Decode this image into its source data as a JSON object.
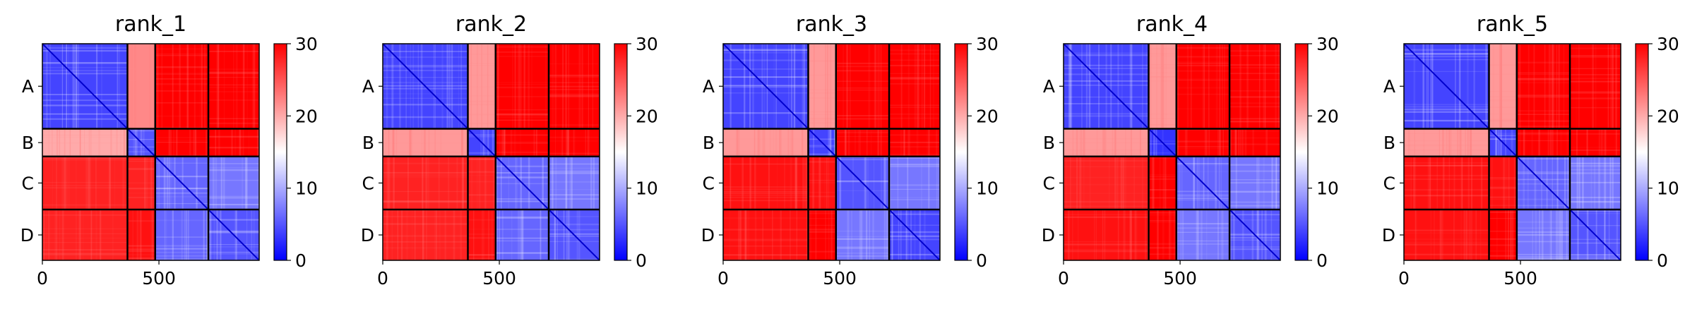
{
  "chart_data": [
    {
      "type": "heatmap",
      "title": "rank_1",
      "chain_labels": [
        "A",
        "B",
        "C",
        "D"
      ],
      "chain_boundaries": [
        0,
        365,
        484,
        712,
        930
      ],
      "x_ticks": [
        {
          "value": 0,
          "label": "0"
        },
        {
          "value": 500,
          "label": "500"
        }
      ],
      "colorbar": {
        "min": 0,
        "max": 30,
        "ticks": [
          {
            "value": 0,
            "label": "0"
          },
          {
            "value": 10,
            "label": "10"
          },
          {
            "value": 20,
            "label": "20"
          },
          {
            "value": 30,
            "label": "30"
          }
        ],
        "colormap": "bwr"
      },
      "blocks": [
        [
          4,
          22,
          30,
          30
        ],
        [
          20,
          5,
          30,
          30
        ],
        [
          28,
          28,
          6,
          7
        ],
        [
          28,
          29,
          6,
          5
        ]
      ]
    },
    {
      "type": "heatmap",
      "title": "rank_2",
      "chain_labels": [
        "A",
        "B",
        "C",
        "D"
      ],
      "chain_boundaries": [
        0,
        365,
        484,
        712,
        930
      ],
      "x_ticks": [
        {
          "value": 0,
          "label": "0"
        },
        {
          "value": 500,
          "label": "500"
        }
      ],
      "colorbar": {
        "min": 0,
        "max": 30,
        "ticks": [
          {
            "value": 0,
            "label": "0"
          },
          {
            "value": 10,
            "label": "10"
          },
          {
            "value": 20,
            "label": "20"
          },
          {
            "value": 30,
            "label": "30"
          }
        ],
        "colormap": "bwr"
      },
      "blocks": [
        [
          4,
          21,
          30,
          30
        ],
        [
          21,
          4,
          30,
          30
        ],
        [
          28,
          28,
          6,
          7
        ],
        [
          28,
          29,
          6,
          5
        ]
      ]
    },
    {
      "type": "heatmap",
      "title": "rank_3",
      "chain_labels": [
        "A",
        "B",
        "C",
        "D"
      ],
      "chain_boundaries": [
        0,
        365,
        484,
        712,
        930
      ],
      "x_ticks": [
        {
          "value": 0,
          "label": "0"
        },
        {
          "value": 500,
          "label": "500"
        }
      ],
      "colorbar": {
        "min": 0,
        "max": 30,
        "ticks": [
          {
            "value": 0,
            "label": "0"
          },
          {
            "value": 10,
            "label": "10"
          },
          {
            "value": 20,
            "label": "20"
          },
          {
            "value": 30,
            "label": "30"
          }
        ],
        "colormap": "bwr"
      },
      "blocks": [
        [
          4,
          21,
          30,
          30
        ],
        [
          21,
          4,
          30,
          30
        ],
        [
          29,
          29,
          5,
          7
        ],
        [
          29,
          30,
          7,
          4
        ]
      ]
    },
    {
      "type": "heatmap",
      "title": "rank_4",
      "chain_labels": [
        "A",
        "B",
        "C",
        "D"
      ],
      "chain_boundaries": [
        0,
        365,
        484,
        712,
        930
      ],
      "x_ticks": [
        {
          "value": 0,
          "label": "0"
        },
        {
          "value": 500,
          "label": "500"
        }
      ],
      "colorbar": {
        "min": 0,
        "max": 30,
        "ticks": [
          {
            "value": 0,
            "label": "0"
          },
          {
            "value": 10,
            "label": "10"
          },
          {
            "value": 20,
            "label": "20"
          },
          {
            "value": 30,
            "label": "30"
          }
        ],
        "colormap": "bwr"
      },
      "blocks": [
        [
          4,
          21,
          30,
          30
        ],
        [
          21,
          3,
          30,
          30
        ],
        [
          28,
          30,
          6,
          7
        ],
        [
          29,
          30,
          7,
          5
        ]
      ]
    },
    {
      "type": "heatmap",
      "title": "rank_5",
      "chain_labels": [
        "A",
        "B",
        "C",
        "D"
      ],
      "chain_boundaries": [
        0,
        365,
        484,
        712,
        930
      ],
      "x_ticks": [
        {
          "value": 0,
          "label": "0"
        },
        {
          "value": 500,
          "label": "500"
        }
      ],
      "colorbar": {
        "min": 0,
        "max": 30,
        "ticks": [
          {
            "value": 0,
            "label": "0"
          },
          {
            "value": 10,
            "label": "10"
          },
          {
            "value": 20,
            "label": "20"
          },
          {
            "value": 30,
            "label": "30"
          }
        ],
        "colormap": "bwr"
      },
      "blocks": [
        [
          4,
          21,
          30,
          30
        ],
        [
          21,
          4,
          30,
          30
        ],
        [
          29,
          29,
          6,
          7
        ],
        [
          29,
          30,
          7,
          5
        ]
      ]
    }
  ]
}
